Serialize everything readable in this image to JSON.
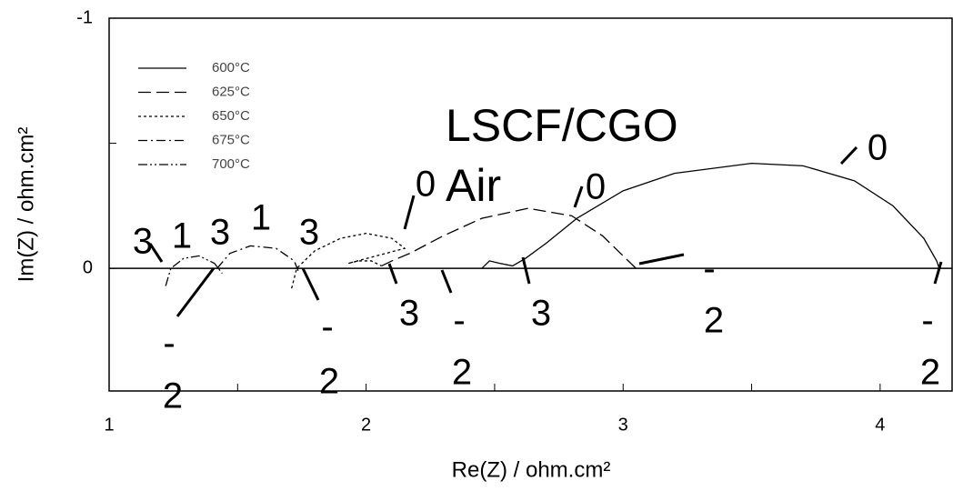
{
  "chart_data": {
    "type": "line",
    "xlabel": "Re(Z) / ohm.cm²",
    "ylabel": "Im(Z) / ohm.cm²",
    "xlim": [
      1,
      4.28
    ],
    "ylim": [
      0.49,
      -1
    ],
    "xticks": [
      1,
      2,
      3,
      4
    ],
    "yticks": [
      -1,
      0
    ],
    "xminorticks": [
      1.5,
      2.5,
      3.5
    ],
    "yminorticks": [
      -0.5
    ],
    "legend": "upper left",
    "series": [
      {
        "name": "600°C",
        "color": "#000000",
        "linestyle": "solid",
        "x": [
          2.45,
          2.48,
          2.52,
          2.57,
          2.62,
          2.7,
          2.82,
          3.0,
          3.2,
          3.5,
          3.7,
          3.9,
          4.05,
          4.17,
          4.22,
          4.23
        ],
        "values": [
          0.0,
          -0.03,
          -0.02,
          -0.01,
          -0.04,
          -0.1,
          -0.2,
          -0.31,
          -0.38,
          -0.42,
          -0.41,
          -0.35,
          -0.25,
          -0.12,
          -0.03,
          0.0
        ]
      },
      {
        "name": "625°C",
        "color": "#000000",
        "linestyle": "dashed",
        "x": [
          2.06,
          2.1,
          2.17,
          2.3,
          2.45,
          2.63,
          2.8,
          2.92,
          3.0,
          3.05
        ],
        "values": [
          -0.01,
          -0.03,
          -0.06,
          -0.13,
          -0.2,
          -0.24,
          -0.21,
          -0.13,
          -0.05,
          0.0
        ]
      },
      {
        "name": "650°C",
        "color": "#000000",
        "linestyle": "dotted",
        "x": [
          1.71,
          1.73,
          1.8,
          1.9,
          2.0,
          2.1,
          2.15,
          1.93,
          1.97,
          2.02,
          2.06
        ],
        "values": [
          0.08,
          0.0,
          -0.07,
          -0.12,
          -0.14,
          -0.12,
          -0.08,
          -0.02,
          -0.03,
          -0.03,
          -0.01
        ]
      },
      {
        "name": "675°C",
        "color": "#000000",
        "linestyle": "dashdot",
        "x": [
          1.42,
          1.47,
          1.55,
          1.65,
          1.72,
          1.74
        ],
        "values": [
          0.0,
          -0.06,
          -0.09,
          -0.08,
          -0.03,
          0.02
        ]
      },
      {
        "name": "700°C",
        "color": "#000000",
        "linestyle": "dashdotdot",
        "x": [
          1.22,
          1.24,
          1.29,
          1.35,
          1.41,
          1.44
        ],
        "values": [
          0.07,
          0.0,
          -0.04,
          -0.05,
          -0.02,
          0.02
        ]
      }
    ],
    "annotations": [
      "LSCF/CGO",
      "Air",
      "3",
      "1",
      "3",
      "1",
      "3",
      "0",
      "0",
      "0",
      "3",
      "3",
      "-",
      "2",
      "-",
      "2",
      "-",
      "2",
      "-",
      "2",
      "-",
      "2"
    ]
  }
}
